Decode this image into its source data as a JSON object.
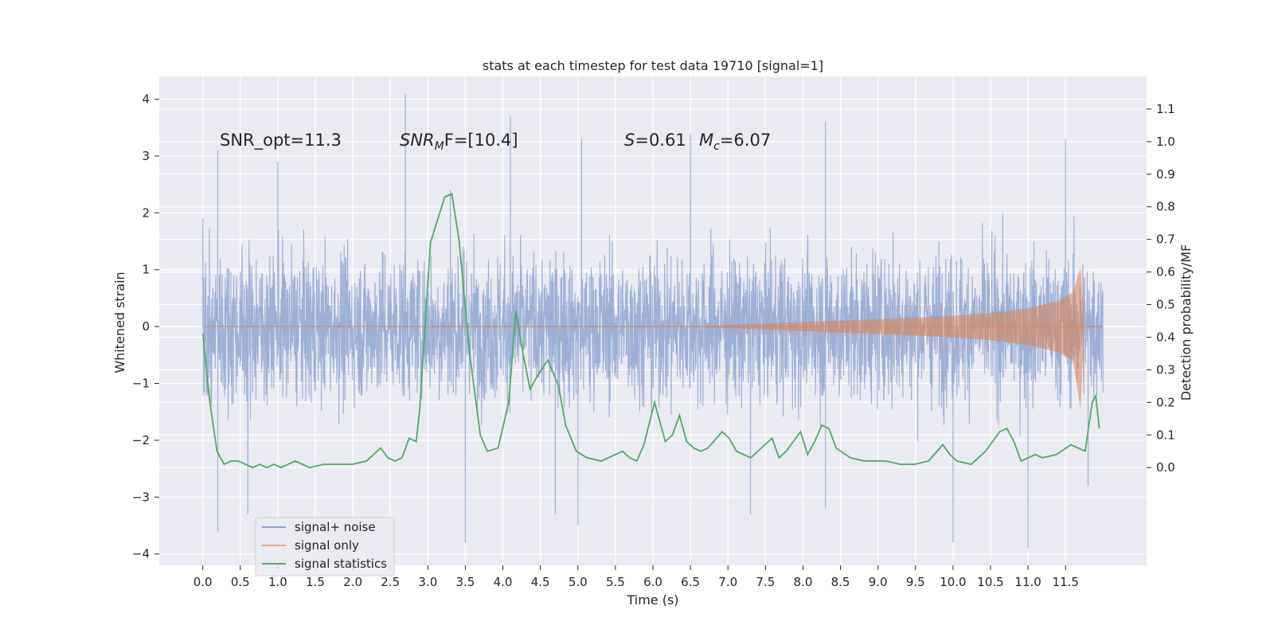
{
  "chart_data": {
    "type": "line",
    "title": "stats at each timestep for test data 19710 [signal=1]",
    "xlabel": "Time (s)",
    "ylabel": "Whitened strain",
    "ylabel_right": "Detection probability/MF",
    "xlim": [
      -0.58,
      12.58
    ],
    "ylim": [
      -4.2,
      4.4
    ],
    "ylim_right": [
      -0.3,
      1.2
    ],
    "x_ticks": [
      "0.0",
      "0.5",
      "1.0",
      "1.5",
      "2.0",
      "2.5",
      "3.0",
      "3.5",
      "4.0",
      "4.5",
      "5.0",
      "5.5",
      "6.0",
      "6.5",
      "7.0",
      "7.5",
      "8.0",
      "8.5",
      "9.0",
      "9.5",
      "10.0",
      "10.5",
      "11.0",
      "11.5"
    ],
    "y_ticks": [
      "4",
      "3",
      "2",
      "1",
      "0",
      "−1",
      "−2",
      "−3",
      "−4"
    ],
    "y_ticks_right": [
      "1.1",
      "1.0",
      "0.9",
      "0.8",
      "0.7",
      "0.6",
      "0.5",
      "0.4",
      "0.3",
      "0.2",
      "0.1",
      "0.0"
    ],
    "grid": true,
    "legend_position": "lower-left",
    "annotations": {
      "snr_opt": "SNR_opt=11.3",
      "snr_mf_sym": "SNR",
      "snr_mf_sub": "M",
      "snr_mf_rest": "F=[10.4]",
      "s_sym": "S",
      "s_rest": "=0.61",
      "mc_sym": "M",
      "mc_sub": "c",
      "mc_rest": "=6.07"
    },
    "series": [
      {
        "name": "signal+ noise",
        "color": "#8fa5cf",
        "axis": "left",
        "x_range": [
          0.0,
          12.0
        ],
        "envelope_note": "dense noise band",
        "peaks_upper": [
          [
            0.0,
            1.9
          ],
          [
            0.2,
            3.1
          ],
          [
            1.0,
            2.9
          ],
          [
            2.7,
            4.1
          ],
          [
            3.3,
            2.4
          ],
          [
            4.1,
            3.7
          ],
          [
            5.05,
            3.3
          ],
          [
            6.5,
            3.4
          ],
          [
            8.3,
            3.6
          ],
          [
            11.5,
            3.3
          ]
        ],
        "peaks_lower": [
          [
            0.2,
            -3.6
          ],
          [
            0.6,
            -3.3
          ],
          [
            3.5,
            -3.8
          ],
          [
            4.7,
            -3.3
          ],
          [
            5.0,
            -3.5
          ],
          [
            7.3,
            -3.3
          ],
          [
            8.3,
            -3.2
          ],
          [
            10.0,
            -3.8
          ],
          [
            11.0,
            -3.9
          ],
          [
            11.8,
            -2.8
          ]
        ]
      },
      {
        "name": "signal only",
        "color": "#dd8452",
        "axis": "left",
        "x_range": [
          0.0,
          12.0
        ],
        "envelope": [
          [
            6.7,
            0.01
          ],
          [
            7.0,
            0.03
          ],
          [
            8.0,
            0.08
          ],
          [
            9.0,
            0.13
          ],
          [
            10.0,
            0.19
          ],
          [
            10.5,
            0.24
          ],
          [
            11.0,
            0.32
          ],
          [
            11.4,
            0.45
          ],
          [
            11.6,
            0.6
          ],
          [
            11.7,
            1.05
          ],
          [
            11.75,
            0.0
          ]
        ]
      },
      {
        "name": "signal statistics",
        "color": "#55a868",
        "axis": "right",
        "points": [
          [
            0.0,
            0.41
          ],
          [
            0.1,
            0.2
          ],
          [
            0.2,
            0.05
          ],
          [
            0.3,
            0.01
          ],
          [
            0.4,
            0.02
          ],
          [
            0.5,
            0.02
          ],
          [
            0.6,
            0.01
          ],
          [
            0.7,
            0.0
          ],
          [
            0.8,
            0.01
          ],
          [
            0.9,
            0.0
          ],
          [
            1.0,
            0.01
          ],
          [
            1.1,
            0.0
          ],
          [
            1.2,
            0.01
          ],
          [
            1.3,
            0.02
          ],
          [
            1.4,
            0.01
          ],
          [
            1.5,
            0.0
          ],
          [
            1.7,
            0.01
          ],
          [
            1.9,
            0.01
          ],
          [
            2.0,
            0.01
          ],
          [
            2.1,
            0.01
          ],
          [
            2.3,
            0.02
          ],
          [
            2.4,
            0.04
          ],
          [
            2.5,
            0.06
          ],
          [
            2.6,
            0.03
          ],
          [
            2.7,
            0.02
          ],
          [
            2.8,
            0.03
          ],
          [
            2.9,
            0.09
          ],
          [
            3.0,
            0.08
          ],
          [
            3.05,
            0.18
          ],
          [
            3.2,
            0.69
          ],
          [
            3.4,
            0.83
          ],
          [
            3.5,
            0.84
          ],
          [
            3.6,
            0.7
          ],
          [
            3.75,
            0.35
          ],
          [
            3.9,
            0.1
          ],
          [
            4.0,
            0.05
          ],
          [
            4.15,
            0.06
          ],
          [
            4.3,
            0.2
          ],
          [
            4.4,
            0.48
          ],
          [
            4.5,
            0.35
          ],
          [
            4.6,
            0.24
          ],
          [
            4.7,
            0.28
          ],
          [
            4.85,
            0.33
          ],
          [
            5.0,
            0.25
          ],
          [
            5.1,
            0.13
          ],
          [
            5.25,
            0.05
          ],
          [
            5.4,
            0.03
          ],
          [
            5.6,
            0.02
          ],
          [
            5.8,
            0.04
          ],
          [
            5.9,
            0.05
          ],
          [
            6.0,
            0.03
          ],
          [
            6.1,
            0.02
          ],
          [
            6.2,
            0.07
          ],
          [
            6.35,
            0.2
          ],
          [
            6.5,
            0.08
          ],
          [
            6.6,
            0.1
          ],
          [
            6.7,
            0.16
          ],
          [
            6.8,
            0.08
          ],
          [
            6.9,
            0.06
          ],
          [
            7.0,
            0.05
          ],
          [
            7.1,
            0.06
          ],
          [
            7.3,
            0.11
          ],
          [
            7.4,
            0.09
          ],
          [
            7.5,
            0.05
          ],
          [
            7.7,
            0.03
          ],
          [
            7.9,
            0.07
          ],
          [
            8.0,
            0.09
          ],
          [
            8.1,
            0.03
          ],
          [
            8.2,
            0.05
          ],
          [
            8.4,
            0.11
          ],
          [
            8.5,
            0.04
          ],
          [
            8.6,
            0.08
          ],
          [
            8.7,
            0.13
          ],
          [
            8.8,
            0.12
          ],
          [
            8.9,
            0.06
          ],
          [
            9.1,
            0.03
          ],
          [
            9.3,
            0.02
          ],
          [
            9.6,
            0.02
          ],
          [
            9.8,
            0.01
          ],
          [
            10.0,
            0.01
          ],
          [
            10.2,
            0.02
          ],
          [
            10.4,
            0.07
          ],
          [
            10.5,
            0.04
          ],
          [
            10.6,
            0.02
          ],
          [
            10.8,
            0.01
          ],
          [
            11.0,
            0.05
          ],
          [
            11.2,
            0.11
          ],
          [
            11.3,
            0.12
          ],
          [
            11.4,
            0.08
          ],
          [
            11.5,
            0.02
          ],
          [
            11.6,
            0.03
          ],
          [
            11.7,
            0.04
          ],
          [
            11.8,
            0.03
          ],
          [
            12.0,
            0.04
          ],
          [
            12.2,
            0.07
          ],
          [
            12.4,
            0.05
          ],
          [
            12.5,
            0.2
          ],
          [
            12.55,
            0.22
          ],
          [
            12.6,
            0.12
          ]
        ]
      }
    ]
  }
}
